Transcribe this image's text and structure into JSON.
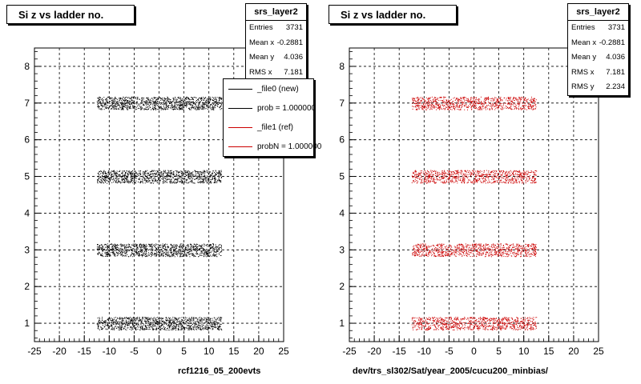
{
  "chart_data": [
    {
      "type": "scatter",
      "title": "Si z vs ladder no.",
      "xlabel": "rcf1216_05_200evts",
      "ylabel": "",
      "xlim": [
        -25,
        25
      ],
      "ylim": [
        0.5,
        8.5
      ],
      "x_ticks": [
        "-25",
        "-20",
        "-15",
        "-10",
        "-5",
        "0",
        "5",
        "10",
        "15",
        "20",
        "25"
      ],
      "y_ticks": [
        "1",
        "2",
        "3",
        "4",
        "5",
        "6",
        "7",
        "8"
      ],
      "grid": true,
      "point_color": "#000000",
      "bands": [
        {
          "y": 1,
          "x_range": [
            -12.5,
            12.5
          ]
        },
        {
          "y": 3,
          "x_range": [
            -12.5,
            12.5
          ]
        },
        {
          "y": 5,
          "x_range": [
            -12.5,
            12.5
          ]
        },
        {
          "y": 7,
          "x_range": [
            -12.5,
            12.5
          ]
        }
      ],
      "stats": {
        "name": "srs_layer2",
        "rows": [
          {
            "label": "Entries",
            "value": "3731"
          },
          {
            "label": "Mean x",
            "value": "-0.2881"
          },
          {
            "label": "Mean y",
            "value": "4.036"
          },
          {
            "label": "RMS x",
            "value": "7.181"
          }
        ]
      },
      "legend": {
        "placement": "top-right",
        "entries": [
          {
            "label": "_file0 (new)",
            "color": "#000000"
          },
          {
            "label": "prob = 1.000000",
            "color": "#000000"
          },
          {
            "label": "_file1 (ref)",
            "color": "#cc0000"
          },
          {
            "label": "probN = 1.000000",
            "color": "#cc0000"
          }
        ]
      }
    },
    {
      "type": "scatter",
      "title": "Si z vs ladder no.",
      "xlabel": "dev/trs_sl302/Sat/year_2005/cucu200_minbias/",
      "ylabel": "",
      "xlim": [
        -25,
        25
      ],
      "ylim": [
        0.5,
        8.5
      ],
      "x_ticks": [
        "-25",
        "-20",
        "-15",
        "-10",
        "-5",
        "0",
        "5",
        "10",
        "15",
        "20",
        "25"
      ],
      "y_ticks": [
        "1",
        "2",
        "3",
        "4",
        "5",
        "6",
        "7",
        "8"
      ],
      "grid": true,
      "point_color": "#cc0000",
      "bands": [
        {
          "y": 1,
          "x_range": [
            -12.5,
            12.5
          ]
        },
        {
          "y": 3,
          "x_range": [
            -12.5,
            12.5
          ]
        },
        {
          "y": 5,
          "x_range": [
            -12.5,
            12.5
          ]
        },
        {
          "y": 7,
          "x_range": [
            -12.5,
            12.5
          ]
        }
      ],
      "stats": {
        "name": "srs_layer2",
        "rows": [
          {
            "label": "Entries",
            "value": "3731"
          },
          {
            "label": "Mean x",
            "value": "-0.2881"
          },
          {
            "label": "Mean y",
            "value": "4.036"
          },
          {
            "label": "RMS x",
            "value": "7.181"
          },
          {
            "label": "RMS y",
            "value": "2.234"
          }
        ]
      }
    }
  ]
}
